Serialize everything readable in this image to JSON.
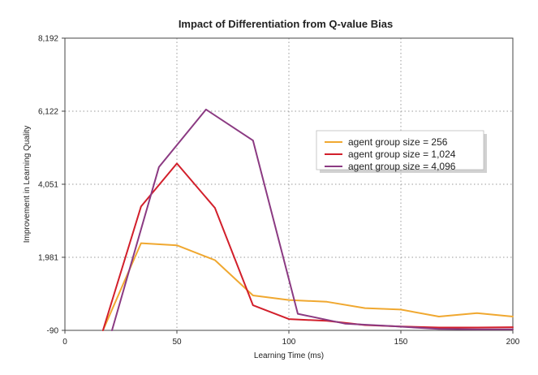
{
  "chart_data": {
    "type": "line",
    "title": "Impact of Differentiation from Q-value Bias",
    "xlabel": "Learning Time (ms)",
    "ylabel": "Improvement in Learning Quality",
    "xlim": [
      0,
      200
    ],
    "ylim": [
      -90,
      8192
    ],
    "xticks": [
      0,
      50,
      100,
      150,
      200
    ],
    "xtick_labels": [
      "0",
      "50",
      "100",
      "150",
      "200"
    ],
    "yticks": [
      -90,
      1981,
      4051,
      6122,
      8192
    ],
    "ytick_labels": [
      "-90",
      "1,981",
      "4,051",
      "6,122",
      "8,192"
    ],
    "grid": true,
    "legend_position": "center-right",
    "series": [
      {
        "name": "agent group size = 256",
        "color": "#f0a830",
        "x": [
          17,
          34,
          50,
          67,
          84,
          100,
          117,
          134,
          150,
          167,
          184,
          200
        ],
        "y": [
          -90,
          2380,
          2320,
          1900,
          900,
          770,
          720,
          540,
          500,
          300,
          400,
          300
        ]
      },
      {
        "name": "agent group size = 1,024",
        "color": "#d21f2b",
        "x": [
          17,
          34,
          50,
          67,
          84,
          100,
          117,
          134,
          150,
          167,
          184,
          200
        ],
        "y": [
          -90,
          3420,
          4640,
          3380,
          620,
          230,
          180,
          60,
          20,
          -10,
          -10,
          0
        ]
      },
      {
        "name": "agent group size = 4,096",
        "color": "#8b3a82",
        "x": [
          21,
          42,
          63,
          84,
          104,
          125,
          146,
          167,
          184,
          200
        ],
        "y": [
          -90,
          4540,
          6170,
          5290,
          380,
          100,
          30,
          -50,
          -60,
          -60
        ]
      }
    ]
  }
}
